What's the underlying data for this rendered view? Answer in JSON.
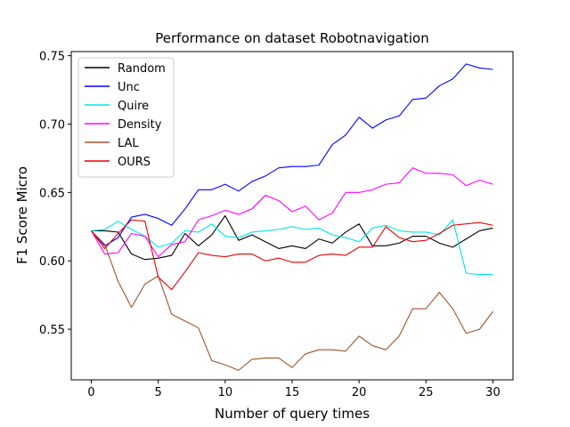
{
  "chart_data": {
    "type": "line",
    "title": "Performance on dataset Robotnavigation",
    "xlabel": "Number of query times",
    "ylabel": "F1 Score Micro",
    "xlim": [
      -1.5,
      31.5
    ],
    "ylim": [
      0.513,
      0.753
    ],
    "xticks": [
      0,
      5,
      10,
      15,
      20,
      25,
      30
    ],
    "yticks": [
      0.55,
      0.6,
      0.65,
      0.7,
      0.75
    ],
    "ytick_labels": [
      "0.55",
      "0.60",
      "0.65",
      "0.70",
      "0.75"
    ],
    "grid": false,
    "legend_position": "top-left",
    "x": [
      0,
      1,
      2,
      3,
      4,
      5,
      6,
      7,
      8,
      9,
      10,
      11,
      12,
      13,
      14,
      15,
      16,
      17,
      18,
      19,
      20,
      21,
      22,
      23,
      24,
      25,
      26,
      27,
      28,
      29,
      30
    ],
    "series": [
      {
        "name": "Random",
        "color": "#000000",
        "values": [
          0.622,
          0.622,
          0.621,
          0.605,
          0.601,
          0.602,
          0.604,
          0.62,
          0.611,
          0.619,
          0.633,
          0.615,
          0.619,
          0.614,
          0.609,
          0.611,
          0.609,
          0.616,
          0.613,
          0.621,
          0.627,
          0.611,
          0.611,
          0.613,
          0.618,
          0.618,
          0.613,
          0.61,
          0.616,
          0.622,
          0.624
        ]
      },
      {
        "name": "Unc",
        "color": "#0000ff",
        "values": [
          0.622,
          0.611,
          0.617,
          0.632,
          0.634,
          0.631,
          0.626,
          0.638,
          0.652,
          0.652,
          0.656,
          0.651,
          0.658,
          0.662,
          0.668,
          0.669,
          0.669,
          0.67,
          0.685,
          0.692,
          0.705,
          0.697,
          0.703,
          0.706,
          0.718,
          0.719,
          0.728,
          0.733,
          0.744,
          0.741,
          0.74
        ]
      },
      {
        "name": "Quire",
        "color": "#00e5e5",
        "values": [
          0.622,
          0.623,
          0.629,
          0.623,
          0.618,
          0.61,
          0.613,
          0.622,
          0.621,
          0.627,
          0.618,
          0.617,
          0.621,
          0.622,
          0.623,
          0.625,
          0.623,
          0.624,
          0.619,
          0.617,
          0.614,
          0.624,
          0.626,
          0.622,
          0.621,
          0.621,
          0.619,
          0.63,
          0.591,
          0.59,
          0.59
        ]
      },
      {
        "name": "Density",
        "color": "#ff00ff",
        "values": [
          0.622,
          0.605,
          0.606,
          0.62,
          0.618,
          0.603,
          0.612,
          0.614,
          0.63,
          0.633,
          0.637,
          0.634,
          0.638,
          0.648,
          0.644,
          0.636,
          0.64,
          0.63,
          0.635,
          0.65,
          0.65,
          0.652,
          0.656,
          0.657,
          0.668,
          0.664,
          0.664,
          0.663,
          0.655,
          0.659,
          0.656
        ]
      },
      {
        "name": "LAL",
        "color": "#a0522d",
        "values": [
          0.622,
          0.612,
          0.585,
          0.566,
          0.583,
          0.589,
          0.561,
          0.556,
          0.551,
          0.527,
          0.524,
          0.52,
          0.528,
          0.529,
          0.529,
          0.522,
          0.532,
          0.535,
          0.535,
          0.534,
          0.545,
          0.538,
          0.535,
          0.545,
          0.565,
          0.565,
          0.577,
          0.565,
          0.547,
          0.55,
          0.563
        ]
      },
      {
        "name": "OURS",
        "color": "#e50000",
        "values": [
          0.622,
          0.609,
          0.62,
          0.63,
          0.629,
          0.588,
          0.579,
          0.592,
          0.606,
          0.604,
          0.603,
          0.605,
          0.605,
          0.6,
          0.602,
          0.599,
          0.599,
          0.604,
          0.605,
          0.604,
          0.61,
          0.61,
          0.625,
          0.617,
          0.614,
          0.615,
          0.62,
          0.626,
          0.627,
          0.628,
          0.626
        ]
      }
    ]
  }
}
